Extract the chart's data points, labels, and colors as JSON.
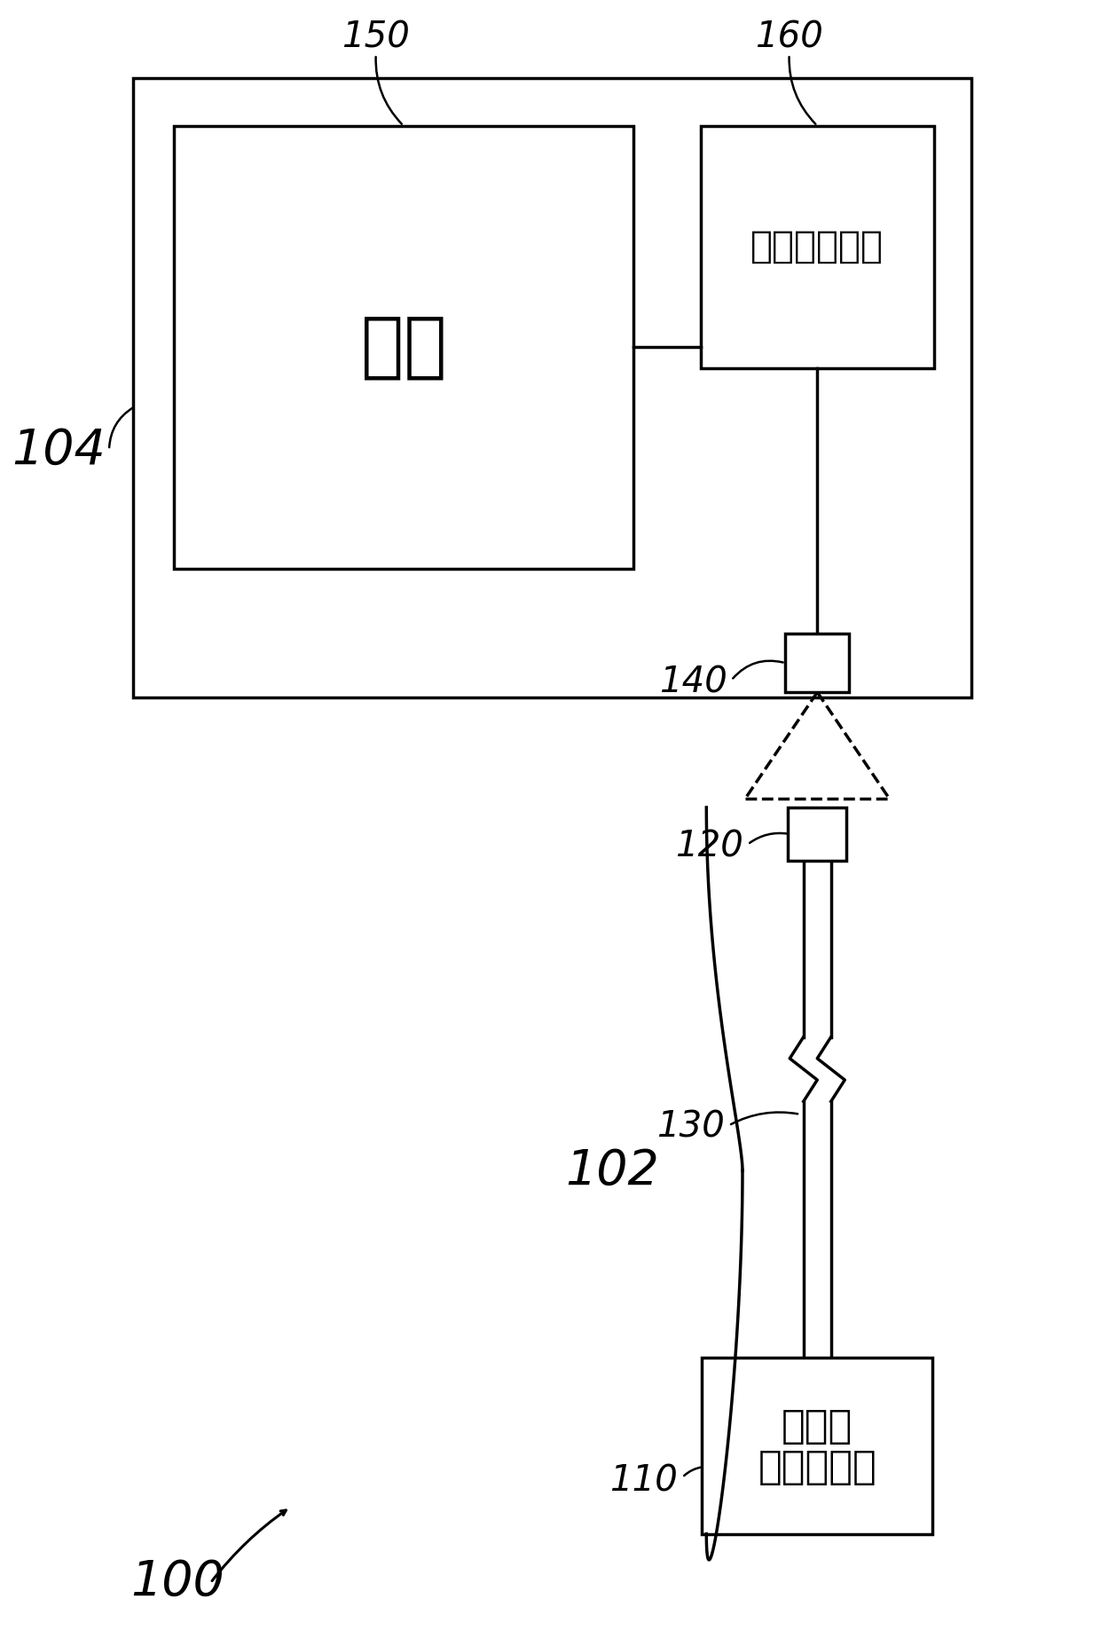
{
  "bg_color": "#ffffff",
  "lc": "#000000",
  "text_battery": "电池",
  "text_charge_ctrl": "充电控制电路",
  "text_adapter_line1": "适应性",
  "text_adapter_line2": "电源转换器",
  "label_104": "104",
  "label_150": "150",
  "label_160": "160",
  "label_140": "140",
  "label_120": "120",
  "label_130": "130",
  "label_110": "110",
  "label_102": "102",
  "label_100": "100"
}
